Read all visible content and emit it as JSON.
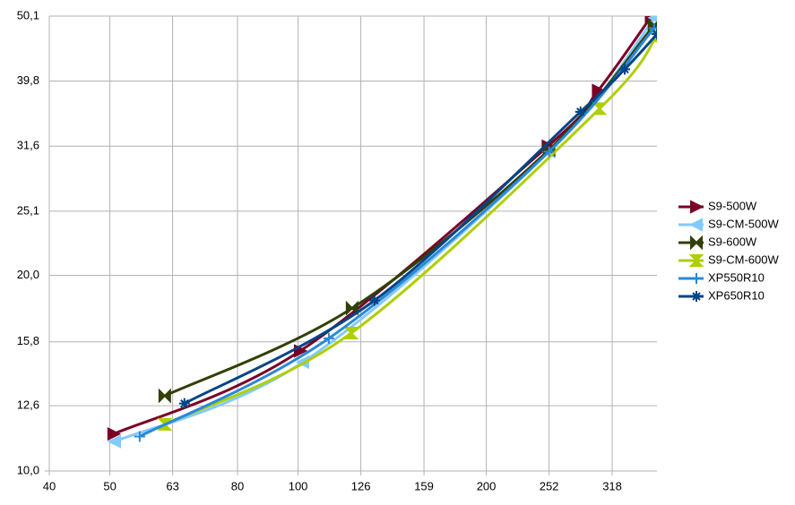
{
  "chart_data": {
    "type": "line",
    "xscale": "log",
    "yscale": "log",
    "grid": true,
    "legend": "right",
    "xlim": [
      40,
      375
    ],
    "ylim": [
      10,
      50.1
    ],
    "xticks": [
      40,
      50,
      63,
      80,
      100,
      126,
      159,
      200,
      252,
      318
    ],
    "yticks": [
      {
        "value": 10,
        "label": "10,0"
      },
      {
        "value": 12.6,
        "label": "12,6"
      },
      {
        "value": 15.8,
        "label": "15,8"
      },
      {
        "value": 20,
        "label": "20,0"
      },
      {
        "value": 25.1,
        "label": "25,1"
      },
      {
        "value": 31.6,
        "label": "31,6"
      },
      {
        "value": 39.8,
        "label": "39,8"
      },
      {
        "value": 50.1,
        "label": "50,1"
      }
    ],
    "series": [
      {
        "name": "S9-500W",
        "color": "#7b0026",
        "marker": "tri-right",
        "x": [
          50.7,
          100.8,
          251,
          302,
          367
        ],
        "values": [
          11.4,
          15.3,
          31.6,
          38.5,
          50
        ]
      },
      {
        "name": "S9-CM-500W",
        "color": "#83caff",
        "marker": "tri-left",
        "x": [
          50.9,
          101.8,
          252,
          372
        ],
        "values": [
          11.1,
          14.7,
          31.0,
          49.8
        ]
      },
      {
        "name": "S9-600W",
        "color": "#314004",
        "marker": "bowtie",
        "x": [
          61.2,
          122,
          252,
          371
        ],
        "values": [
          13.05,
          17.8,
          31.2,
          48.5
        ]
      },
      {
        "name": "S9-CM-600W",
        "color": "#aecf00",
        "marker": "hourglass",
        "x": [
          61.2,
          121.6,
          303.5,
          375
        ],
        "values": [
          11.8,
          16.3,
          36.1,
          46.7
        ]
      },
      {
        "name": "XP550R10",
        "color": "#2a88d8",
        "marker": "plus",
        "x": [
          55.8,
          112,
          252,
          371
        ],
        "values": [
          11.3,
          16.0,
          31.0,
          48
        ]
      },
      {
        "name": "XP650R10",
        "color": "#004586",
        "marker": "star",
        "x": [
          65.8,
          132.5,
          283,
          333,
          375
        ],
        "values": [
          12.7,
          18.3,
          35.7,
          41.5,
          47.0
        ]
      }
    ]
  }
}
